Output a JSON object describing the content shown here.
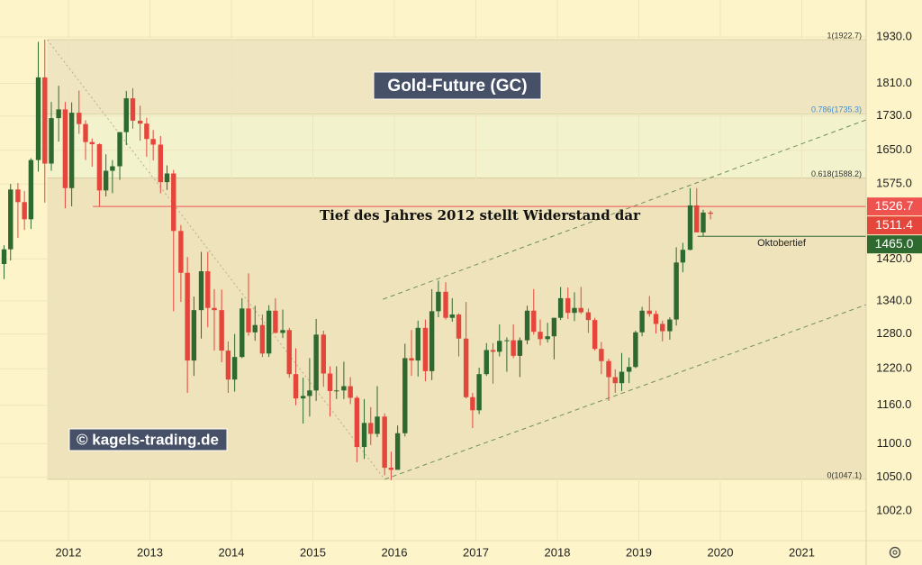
{
  "chart_data": {
    "type": "candlestick",
    "title": "Gold-Future (GC)",
    "watermark": "© kagels-trading.de",
    "log_scale": true,
    "grid": true,
    "up_color": "#2e6930",
    "down_color": "#e5463c",
    "xlim": [
      2011.16,
      2021.79
    ],
    "xticks": [
      2012,
      2013,
      2014,
      2015,
      2016,
      2017,
      2018,
      2019,
      2020,
      2021
    ],
    "ylim": [
      962,
      2031
    ],
    "yticks": [
      {
        "value": 1930,
        "label": "1930.0"
      },
      {
        "value": 1810,
        "label": "1810.0"
      },
      {
        "value": 1730,
        "label": "1730.0"
      },
      {
        "value": 1650,
        "label": "1650.0"
      },
      {
        "value": 1575,
        "label": "1575.0"
      },
      {
        "value": 1420,
        "label": "1420.0"
      },
      {
        "value": 1340,
        "label": "1340.0"
      },
      {
        "value": 1280,
        "label": "1280.0"
      },
      {
        "value": 1220,
        "label": "1220.0"
      },
      {
        "value": 1160,
        "label": "1160.0"
      },
      {
        "value": 1100,
        "label": "1100.0"
      },
      {
        "value": 1050,
        "label": "1050.0"
      },
      {
        "value": 1002,
        "label": "1002.0"
      }
    ],
    "x": [
      2011.21,
      2011.29,
      2011.38,
      2011.46,
      2011.54,
      2011.63,
      2011.71,
      2011.79,
      2011.88,
      2011.96,
      2012.04,
      2012.13,
      2012.21,
      2012.29,
      2012.38,
      2012.46,
      2012.54,
      2012.63,
      2012.71,
      2012.79,
      2012.88,
      2012.96,
      2013.04,
      2013.13,
      2013.21,
      2013.29,
      2013.38,
      2013.46,
      2013.54,
      2013.63,
      2013.71,
      2013.79,
      2013.88,
      2013.96,
      2014.04,
      2014.13,
      2014.21,
      2014.29,
      2014.38,
      2014.46,
      2014.54,
      2014.63,
      2014.71,
      2014.79,
      2014.88,
      2014.96,
      2015.04,
      2015.13,
      2015.21,
      2015.29,
      2015.38,
      2015.46,
      2015.54,
      2015.63,
      2015.71,
      2015.79,
      2015.88,
      2015.96,
      2016.04,
      2016.13,
      2016.21,
      2016.29,
      2016.38,
      2016.46,
      2016.54,
      2016.63,
      2016.71,
      2016.79,
      2016.88,
      2016.96,
      2017.04,
      2017.13,
      2017.21,
      2017.29,
      2017.38,
      2017.46,
      2017.54,
      2017.63,
      2017.71,
      2017.79,
      2017.88,
      2017.96,
      2018.04,
      2018.13,
      2018.21,
      2018.29,
      2018.38,
      2018.46,
      2018.54,
      2018.63,
      2018.71,
      2018.79,
      2018.88,
      2018.96,
      2019.04,
      2019.13,
      2019.21,
      2019.29,
      2019.38,
      2019.46,
      2019.54,
      2019.63,
      2019.71,
      2019.79,
      2019.88
    ],
    "open": [
      1410,
      1439,
      1563,
      1536,
      1500,
      1628,
      1825,
      1620,
      1725,
      1746,
      1566,
      1738,
      1711,
      1669,
      1664,
      1561,
      1604,
      1614,
      1692,
      1773,
      1719,
      1712,
      1676,
      1663,
      1579,
      1598,
      1476,
      1393,
      1234,
      1323,
      1396,
      1327,
      1323,
      1251,
      1202,
      1240,
      1326,
      1283,
      1296,
      1246,
      1322,
      1282,
      1287,
      1211,
      1171,
      1175,
      1184,
      1279,
      1212,
      1183,
      1184,
      1191,
      1172,
      1095,
      1132,
      1115,
      1142,
      1064,
      1061,
      1116,
      1238,
      1234,
      1291,
      1216,
      1321,
      1357,
      1309,
      1315,
      1272,
      1173,
      1152,
      1211,
      1252,
      1249,
      1268,
      1269,
      1242,
      1269,
      1322,
      1284,
      1271,
      1276,
      1309,
      1345,
      1318,
      1327,
      1319,
      1305,
      1254,
      1233,
      1206,
      1196,
      1215,
      1223,
      1283,
      1322,
      1316,
      1298,
      1285,
      1306,
      1413,
      1438,
      1529,
      1473,
      1514
    ],
    "high": [
      1447,
      1575,
      1577,
      1560,
      1632,
      1917,
      1923,
      1764,
      1804,
      1764,
      1763,
      1792,
      1720,
      1677,
      1666,
      1641,
      1628,
      1692,
      1791,
      1798,
      1755,
      1726,
      1697,
      1683,
      1616,
      1606,
      1488,
      1424,
      1348,
      1434,
      1434,
      1362,
      1361,
      1267,
      1280,
      1345,
      1392,
      1331,
      1315,
      1332,
      1345,
      1324,
      1291,
      1255,
      1205,
      1238,
      1307,
      1286,
      1224,
      1224,
      1232,
      1206,
      1175,
      1170,
      1157,
      1191,
      1147,
      1088,
      1128,
      1263,
      1287,
      1304,
      1306,
      1362,
      1378,
      1375,
      1345,
      1317,
      1338,
      1180,
      1222,
      1264,
      1264,
      1297,
      1274,
      1297,
      1274,
      1331,
      1362,
      1306,
      1300,
      1309,
      1366,
      1365,
      1356,
      1366,
      1326,
      1309,
      1266,
      1237,
      1219,
      1247,
      1239,
      1286,
      1329,
      1349,
      1322,
      1304,
      1310,
      1443,
      1452,
      1566,
      1566,
      1520,
      1518
    ],
    "low": [
      1381,
      1417,
      1462,
      1478,
      1480,
      1602,
      1535,
      1604,
      1670,
      1523,
      1527,
      1688,
      1628,
      1613,
      1527,
      1548,
      1555,
      1584,
      1662,
      1700,
      1672,
      1635,
      1627,
      1555,
      1562,
      1321,
      1338,
      1180,
      1208,
      1272,
      1292,
      1251,
      1231,
      1180,
      1182,
      1238,
      1277,
      1268,
      1240,
      1240,
      1281,
      1273,
      1205,
      1160,
      1131,
      1142,
      1167,
      1190,
      1142,
      1170,
      1170,
      1162,
      1072,
      1077,
      1098,
      1110,
      1053,
      1046,
      1061,
      1111,
      1208,
      1207,
      1199,
      1201,
      1310,
      1306,
      1302,
      1241,
      1171,
      1124,
      1146,
      1208,
      1195,
      1241,
      1215,
      1238,
      1206,
      1262,
      1279,
      1260,
      1265,
      1236,
      1305,
      1307,
      1303,
      1316,
      1282,
      1251,
      1211,
      1167,
      1180,
      1183,
      1196,
      1221,
      1276,
      1311,
      1281,
      1267,
      1270,
      1295,
      1394,
      1437,
      1479,
      1465,
      1500
    ],
    "close": [
      1439,
      1563,
      1536,
      1500,
      1628,
      1825,
      1620,
      1725,
      1746,
      1566,
      1738,
      1711,
      1669,
      1664,
      1561,
      1604,
      1614,
      1692,
      1773,
      1719,
      1712,
      1676,
      1663,
      1579,
      1598,
      1476,
      1393,
      1234,
      1323,
      1396,
      1327,
      1323,
      1251,
      1202,
      1240,
      1326,
      1283,
      1296,
      1246,
      1322,
      1282,
      1287,
      1211,
      1171,
      1175,
      1184,
      1279,
      1212,
      1183,
      1184,
      1191,
      1172,
      1095,
      1132,
      1115,
      1142,
      1064,
      1061,
      1116,
      1238,
      1234,
      1291,
      1216,
      1321,
      1357,
      1309,
      1315,
      1272,
      1173,
      1152,
      1211,
      1252,
      1249,
      1268,
      1269,
      1242,
      1269,
      1322,
      1284,
      1271,
      1276,
      1309,
      1345,
      1318,
      1327,
      1319,
      1305,
      1254,
      1233,
      1206,
      1196,
      1215,
      1223,
      1283,
      1322,
      1316,
      1298,
      1285,
      1306,
      1413,
      1438,
      1529,
      1473,
      1514,
      1511.4
    ],
    "fib_start": 2011.74,
    "fib_levels": [
      {
        "value": 1922.7,
        "label": "1(1922.7)",
        "color": "#333333"
      },
      {
        "value": 1735.3,
        "label": "0.786(1735.3)",
        "color": "#3f8fd0"
      },
      {
        "value": 1588.2,
        "label": "0.618(1588.2)",
        "color": "#333333"
      },
      {
        "value": 1047.1,
        "label": "0(1047.1)",
        "color": "#333333"
      }
    ],
    "fib_fills": [
      "#efe5c0",
      "#f2f2cd",
      "#efe3bc"
    ],
    "levels": [
      {
        "value": 1526.7,
        "start": 2012.3,
        "color": "#ef5350",
        "name": "Tief des Jahres 2012 stellt Widerstand dar"
      },
      {
        "value": 1465,
        "label": "1465.0",
        "start": 2019.72,
        "color": "#2e6930",
        "name": "Oktobertief"
      }
    ],
    "trend_lines": [
      {
        "x": [
          2011.74,
          2015.88
        ],
        "y": [
          1922.7,
          1047.1
        ],
        "style": "dotted"
      },
      {
        "x": [
          2015.86,
          2021.79
        ],
        "y": [
          1343,
          1721
        ],
        "style": "dashed"
      },
      {
        "x": [
          2015.88,
          2021.79
        ],
        "y": [
          1047.1,
          1333
        ],
        "style": "dashed"
      }
    ]
  }
}
